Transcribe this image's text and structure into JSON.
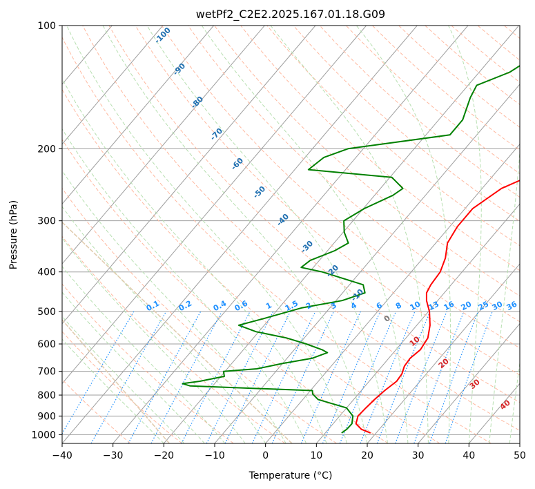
{
  "chart_data": {
    "type": "line",
    "title": "wetPf2_C2E2.2025.167.01.18.G09",
    "xlabel": "Temperature (°C)",
    "ylabel": "Pressure (hPa)",
    "xlim": [
      -40,
      50
    ],
    "ylim": [
      1050,
      100
    ],
    "y_scale": "log",
    "grid": true,
    "x_ticks": [
      -40,
      -30,
      -20,
      -10,
      0,
      10,
      20,
      30,
      40,
      50
    ],
    "y_ticks": [
      1000,
      900,
      800,
      700,
      600,
      500,
      400,
      300,
      200,
      100
    ],
    "series": [
      {
        "name": "",
        "color": "#ff0000",
        "values": [
          [
            990,
            18.9
          ],
          [
            970,
            16.5
          ],
          [
            940,
            14.5
          ],
          [
            900,
            13.6
          ],
          [
            860,
            13.8
          ],
          [
            820,
            14.1
          ],
          [
            780,
            14.6
          ],
          [
            740,
            15.4
          ],
          [
            710,
            15.2
          ],
          [
            680,
            14.4
          ],
          [
            650,
            14.2
          ],
          [
            620,
            14.8
          ],
          [
            580,
            14.3
          ],
          [
            540,
            12.6
          ],
          [
            500,
            10.2
          ],
          [
            470,
            7.8
          ],
          [
            450,
            6.5
          ],
          [
            430,
            6.0
          ],
          [
            400,
            5.7
          ],
          [
            370,
            4.4
          ],
          [
            340,
            2.3
          ],
          [
            310,
            1.5
          ],
          [
            280,
            1.5
          ],
          [
            250,
            3.8
          ],
          [
            230,
            8.0
          ],
          [
            215,
            9.9
          ],
          [
            200,
            9.6
          ],
          [
            185,
            7.5
          ],
          [
            170,
            6.1
          ],
          [
            155,
            7.5
          ],
          [
            140,
            10.0
          ],
          [
            130,
            11.2
          ],
          [
            120,
            10.9
          ],
          [
            110,
            11.4
          ],
          [
            100,
            12.8
          ]
        ]
      },
      {
        "name": "",
        "color": "#008000",
        "values": [
          [
            990,
            13.2
          ],
          [
            970,
            13.6
          ],
          [
            940,
            13.7
          ],
          [
            900,
            12.6
          ],
          [
            860,
            10.0
          ],
          [
            820,
            3.0
          ],
          [
            795,
            1.0
          ],
          [
            780,
            0.4
          ],
          [
            760,
            -24.4
          ],
          [
            750,
            -26.3
          ],
          [
            740,
            -23.3
          ],
          [
            720,
            -19.3
          ],
          [
            700,
            -20.3
          ],
          [
            690,
            -14.2
          ],
          [
            670,
            -10.1
          ],
          [
            650,
            -5.0
          ],
          [
            630,
            -3.0
          ],
          [
            620,
            -4.5
          ],
          [
            600,
            -8.6
          ],
          [
            580,
            -13.5
          ],
          [
            560,
            -20.5
          ],
          [
            540,
            -25.0
          ],
          [
            520,
            -21.2
          ],
          [
            490,
            -15.6
          ],
          [
            470,
            -8.8
          ],
          [
            450,
            -5.6
          ],
          [
            430,
            -7.3
          ],
          [
            415,
            -12.3
          ],
          [
            400,
            -17.5
          ],
          [
            390,
            -22.4
          ],
          [
            375,
            -21.8
          ],
          [
            355,
            -18.6
          ],
          [
            340,
            -17.2
          ],
          [
            320,
            -19.8
          ],
          [
            300,
            -21.8
          ],
          [
            280,
            -19.8
          ],
          [
            260,
            -16.4
          ],
          [
            250,
            -15.6
          ],
          [
            235,
            -19.6
          ],
          [
            225,
            -37.3
          ],
          [
            210,
            -36.3
          ],
          [
            200,
            -33.0
          ],
          [
            185,
            -15.3
          ],
          [
            170,
            -15.3
          ],
          [
            150,
            -17.5
          ],
          [
            140,
            -18.3
          ],
          [
            130,
            -14.0
          ],
          [
            120,
            -12.0
          ],
          [
            110,
            -11.1
          ],
          [
            100,
            -8.8
          ]
        ]
      }
    ],
    "mixing_ratio_labels": [
      "0.1",
      "0.2",
      "0.4",
      "0.6",
      "1",
      "1.5",
      "2",
      "3",
      "4",
      "6",
      "8",
      "10",
      "13",
      "16",
      "20",
      "25",
      "30",
      "36"
    ],
    "dry_adiabat_labels": [
      "-100",
      "-90",
      "-80",
      "-70",
      "-60",
      "-50",
      "-40",
      "-30",
      "-20",
      "-10"
    ],
    "moist_adiabat_labels": [
      "0",
      "10",
      "20",
      "30",
      "40"
    ]
  },
  "colors": {
    "isotherm": "#9e9e9e",
    "dry_adiabat": "#ffb9a0",
    "moist_adiabat": "#b7dfb0",
    "mixing_ratio": "#1e90ff",
    "dry_adiabat_label": "#1f6fb0",
    "moist_adiabat_label": "#d62728",
    "lcl_label": "#777777",
    "curve_tan": "#e2cdb0"
  }
}
